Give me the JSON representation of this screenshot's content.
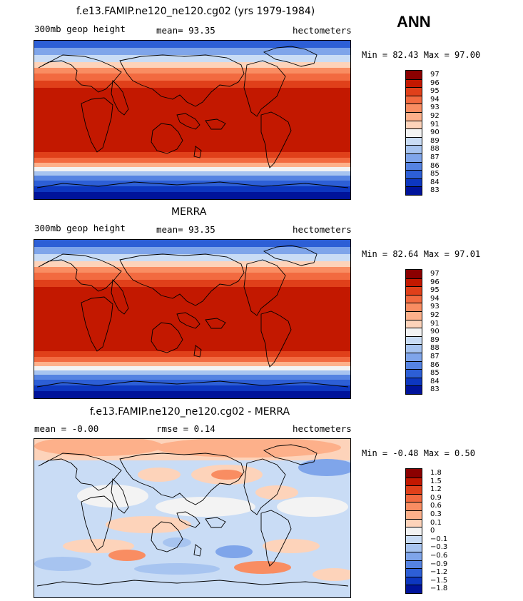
{
  "header": {
    "case_label": "ANN"
  },
  "panels": [
    {
      "title": "f.e13.FAMIP.ne120_ne120.cg02 (yrs 1979-1984)",
      "left_label": "300mb geop height",
      "center_label": "mean=   93.35",
      "units": "hectometers",
      "minmax": "Min =  82.43 Max =  97.00",
      "levels": [
        "97",
        "96",
        "95",
        "94",
        "93",
        "92",
        "91",
        "90",
        "89",
        "88",
        "87",
        "86",
        "85",
        "84",
        "83"
      ],
      "colors": [
        "#8b0000",
        "#c31800",
        "#e0401a",
        "#f26a40",
        "#f98d62",
        "#fdb08a",
        "#fdd3ba",
        "#f3f3f3",
        "#c9dcf5",
        "#a7c4f0",
        "#7fa5ea",
        "#5583e2",
        "#2d5fd6",
        "#0d37c0",
        "#00139a"
      ]
    },
    {
      "title": "MERRA",
      "left_label": "300mb geop height",
      "center_label": "mean=   93.35",
      "units": "hectometers",
      "minmax": "Min =  82.64 Max =  97.01",
      "levels": [
        "97",
        "96",
        "95",
        "94",
        "93",
        "92",
        "91",
        "90",
        "89",
        "88",
        "87",
        "86",
        "85",
        "84",
        "83"
      ],
      "colors": [
        "#8b0000",
        "#c31800",
        "#e0401a",
        "#f26a40",
        "#f98d62",
        "#fdb08a",
        "#fdd3ba",
        "#f3f3f3",
        "#c9dcf5",
        "#a7c4f0",
        "#7fa5ea",
        "#5583e2",
        "#2d5fd6",
        "#0d37c0",
        "#00139a"
      ]
    },
    {
      "title": "f.e13.FAMIP.ne120_ne120.cg02 - MERRA",
      "left_label": "mean =   -0.00",
      "center_label": "rmse =    0.14",
      "units": "hectometers",
      "minmax": "Min =  -0.48 Max =   0.50",
      "levels": [
        "1.8",
        "1.5",
        "1.2",
        "0.9",
        "0.6",
        "0.3",
        "0.1",
        "0",
        "−0.1",
        "−0.3",
        "−0.6",
        "−0.9",
        "−1.2",
        "−1.5",
        "−1.8"
      ],
      "colors": [
        "#8b0000",
        "#c31800",
        "#e0401a",
        "#f26a40",
        "#f98d62",
        "#fdb08a",
        "#fdd3ba",
        "#f3f3f3",
        "#c9dcf5",
        "#a7c4f0",
        "#7fa5ea",
        "#5583e2",
        "#2d5fd6",
        "#0d37c0",
        "#00139a"
      ]
    }
  ]
}
